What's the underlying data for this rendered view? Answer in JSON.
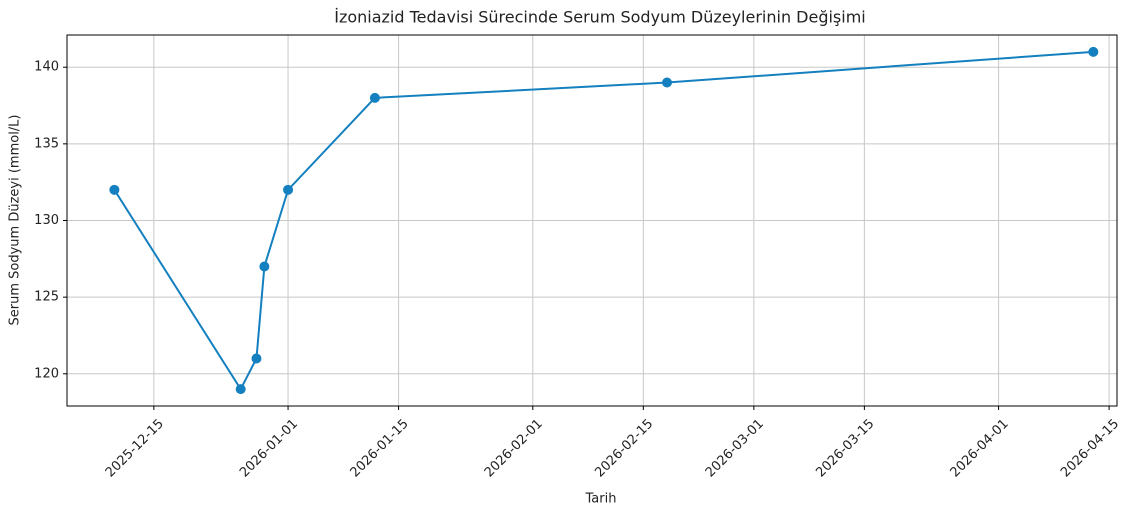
{
  "chart_data": {
    "type": "line",
    "title": "İzoniazid Tedavisi Sürecinde Serum Sodyum Düzeylerinin Değişimi",
    "xlabel": "Tarih",
    "ylabel": "Serum Sodyum Düzeyi (mmol/L)",
    "x": [
      "2025-12-10",
      "2025-12-26",
      "2025-12-28",
      "2025-12-29",
      "2026-01-01",
      "2026-01-12",
      "2026-02-18",
      "2026-04-13"
    ],
    "series": [
      {
        "name": "Serum Sodyum",
        "color": "#1480bf",
        "values": [
          132,
          119,
          121,
          127,
          132,
          138,
          139,
          141
        ]
      }
    ],
    "xlim": [
      "2025-12-04",
      "2026-04-16"
    ],
    "xticks": [
      "2025-12-15",
      "2026-01-01",
      "2026-01-15",
      "2026-02-01",
      "2026-02-15",
      "2026-03-01",
      "2026-03-15",
      "2026-04-01",
      "2026-04-15"
    ],
    "ylim": [
      117.9,
      142.1
    ],
    "yticks": [
      120,
      125,
      130,
      135,
      140
    ],
    "grid": true
  }
}
